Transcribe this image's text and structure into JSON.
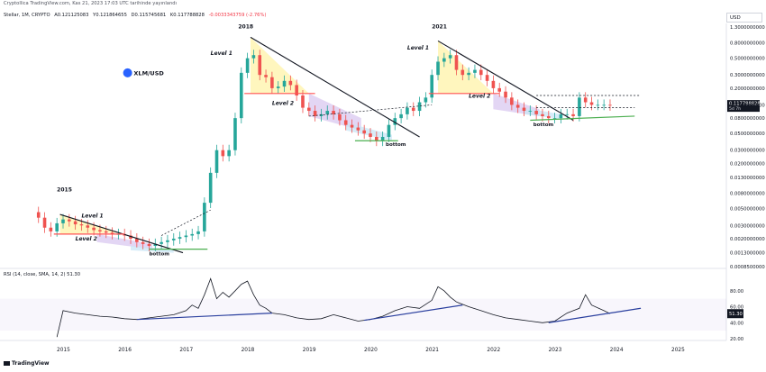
{
  "header": {
    "caption": "Cryptollica TradingView.com, Kas 21, 2023 17:03 UTC tarihinde yayınlandı",
    "symbol": "Stellar, 1M, CRYPTO",
    "open": "A0.121125083",
    "high": "Y0.121864655",
    "low": "D0.115745681",
    "close": "K0.117788828",
    "change": "-0.0033343759 (-2.76%)"
  },
  "currency_badge": "USD",
  "brand": "TradingView",
  "pair_label": "XLM/USD",
  "colors": {
    "up": "#26a69a",
    "down": "#ef5350",
    "rsi": "#131722",
    "trendline": "#2a3f9e",
    "red_level": "#ff5252",
    "green_level": "#4caf50",
    "level1_fill": "#fff3a8",
    "level2_fill": "#d9c8f0",
    "bottom_fill": "#c9e6f5",
    "price_badge": "#131722"
  },
  "annotations": {
    "y2015": "2015",
    "y2018": "2018",
    "y2021": "2021",
    "level1": "Level 1",
    "level2": "Level 2",
    "bottom": "bottom"
  },
  "price_badge": {
    "price": "0.117788828",
    "countdown": "5d 7h"
  },
  "chart_data": [
    {
      "type": "candlestick",
      "title": "Stellar, 1M, CRYPTO",
      "scale": "log",
      "ylim": [
        0.00085,
        1.3
      ],
      "y_ticks": [
        "1.3000000000",
        "0.8000000000",
        "0.5000000000",
        "0.3000000000",
        "0.2000000000",
        "0.1200000000",
        "0.0800000000",
        "0.0500000000",
        "0.0300000000",
        "0.0200000000",
        "0.0130000000",
        "0.0080000000",
        "0.0050000000",
        "0.0030000000",
        "0.0020000000",
        "0.0013000000",
        "0.0008500000"
      ],
      "y_tick_values": [
        1.3,
        0.8,
        0.5,
        0.3,
        0.2,
        0.12,
        0.08,
        0.05,
        0.03,
        0.02,
        0.013,
        0.008,
        0.005,
        0.003,
        0.002,
        0.0013,
        0.00085
      ],
      "x_ticks": [
        "2015",
        "2016",
        "2017",
        "2018",
        "2019",
        "2020",
        "2021",
        "2022",
        "2023",
        "2024",
        "2025"
      ],
      "x_tick_values": [
        2015,
        2016,
        2017,
        2018,
        2019,
        2020,
        2021,
        2022,
        2023,
        2024,
        2025
      ],
      "series": [
        {
          "x": [
            2014.6,
            2014.7,
            2014.8,
            2014.9,
            2015.0,
            2015.1,
            2015.2,
            2015.3,
            2015.4,
            2015.5,
            2015.6,
            2015.7,
            2015.8,
            2015.9,
            2016.0,
            2016.1,
            2016.2,
            2016.3,
            2016.4,
            2016.5,
            2016.6,
            2016.7,
            2016.8,
            2016.9,
            2017.0,
            2017.1,
            2017.2,
            2017.3,
            2017.4,
            2017.5,
            2017.6,
            2017.7,
            2017.8,
            2017.9,
            2018.0,
            2018.1,
            2018.2,
            2018.3,
            2018.4,
            2018.5,
            2018.6,
            2018.7,
            2018.8,
            2018.9,
            2019.0,
            2019.1,
            2019.2,
            2019.3,
            2019.4,
            2019.5,
            2019.6,
            2019.7,
            2019.8,
            2019.9,
            2020.0,
            2020.1,
            2020.2,
            2020.3,
            2020.4,
            2020.5,
            2020.6,
            2020.7,
            2020.8,
            2020.9,
            2021.0,
            2021.1,
            2021.2,
            2021.3,
            2021.4,
            2021.5,
            2021.6,
            2021.7,
            2021.8,
            2021.9,
            2022.0,
            2022.1,
            2022.2,
            2022.3,
            2022.4,
            2022.5,
            2022.6,
            2022.7,
            2022.8,
            2022.9,
            2023.0,
            2023.1,
            2023.2,
            2023.3,
            2023.4,
            2023.5,
            2023.6,
            2023.7,
            2023.8,
            2023.9
          ],
          "open": [
            0.0045,
            0.0038,
            0.0028,
            0.0025,
            0.0032,
            0.0036,
            0.0034,
            0.0031,
            0.003,
            0.0028,
            0.0026,
            0.0025,
            0.0024,
            0.0023,
            0.0023,
            0.0022,
            0.002,
            0.0018,
            0.0017,
            0.0016,
            0.0017,
            0.0018,
            0.0019,
            0.002,
            0.0021,
            0.0022,
            0.0023,
            0.0025,
            0.006,
            0.015,
            0.03,
            0.025,
            0.03,
            0.08,
            0.32,
            0.5,
            0.55,
            0.3,
            0.28,
            0.2,
            0.21,
            0.25,
            0.22,
            0.16,
            0.11,
            0.1,
            0.085,
            0.09,
            0.1,
            0.09,
            0.075,
            0.065,
            0.06,
            0.055,
            0.05,
            0.045,
            0.04,
            0.045,
            0.065,
            0.08,
            0.09,
            0.11,
            0.1,
            0.13,
            0.15,
            0.3,
            0.45,
            0.5,
            0.55,
            0.35,
            0.3,
            0.32,
            0.35,
            0.3,
            0.25,
            0.2,
            0.18,
            0.15,
            0.12,
            0.11,
            0.1,
            0.1,
            0.09,
            0.085,
            0.08,
            0.08,
            0.09,
            0.09,
            0.085,
            0.15,
            0.13,
            0.12,
            0.12,
            0.12
          ],
          "close": [
            0.0038,
            0.0028,
            0.0025,
            0.0032,
            0.0036,
            0.0034,
            0.0031,
            0.003,
            0.0028,
            0.0026,
            0.0025,
            0.0024,
            0.0023,
            0.0023,
            0.0022,
            0.002,
            0.0018,
            0.0017,
            0.0016,
            0.0017,
            0.0018,
            0.0019,
            0.002,
            0.0021,
            0.0022,
            0.0023,
            0.0025,
            0.006,
            0.015,
            0.03,
            0.025,
            0.03,
            0.08,
            0.32,
            0.5,
            0.55,
            0.3,
            0.28,
            0.2,
            0.21,
            0.25,
            0.22,
            0.16,
            0.11,
            0.1,
            0.085,
            0.09,
            0.1,
            0.09,
            0.075,
            0.065,
            0.06,
            0.055,
            0.05,
            0.045,
            0.04,
            0.045,
            0.065,
            0.08,
            0.09,
            0.11,
            0.1,
            0.13,
            0.15,
            0.3,
            0.45,
            0.5,
            0.55,
            0.35,
            0.3,
            0.32,
            0.35,
            0.3,
            0.25,
            0.2,
            0.18,
            0.15,
            0.12,
            0.11,
            0.1,
            0.1,
            0.09,
            0.085,
            0.08,
            0.08,
            0.09,
            0.09,
            0.085,
            0.15,
            0.13,
            0.12,
            0.12,
            0.12,
            0.1178
          ]
        }
      ]
    },
    {
      "type": "line",
      "title": "RSI (14, close, SMA, 14, 2) 51.30",
      "ylim": [
        20,
        100
      ],
      "y_ticks": [
        "80.00",
        "60.00",
        "51.30",
        "40.00",
        "20.00"
      ],
      "series": [
        {
          "name": "RSI (14, close, SMA, 14, 2)",
          "x": [
            2014.9,
            2015.0,
            2015.2,
            2015.4,
            2015.6,
            2015.8,
            2016.0,
            2016.2,
            2016.4,
            2016.6,
            2016.8,
            2017.0,
            2017.1,
            2017.2,
            2017.3,
            2017.4,
            2017.5,
            2017.6,
            2017.7,
            2017.8,
            2017.9,
            2018.0,
            2018.1,
            2018.2,
            2018.3,
            2018.4,
            2018.6,
            2018.8,
            2019.0,
            2019.2,
            2019.4,
            2019.6,
            2019.8,
            2020.0,
            2020.2,
            2020.4,
            2020.6,
            2020.8,
            2021.0,
            2021.1,
            2021.2,
            2021.3,
            2021.4,
            2021.6,
            2021.8,
            2022.0,
            2022.2,
            2022.4,
            2022.6,
            2022.8,
            2023.0,
            2023.2,
            2023.4,
            2023.5,
            2023.6,
            2023.8,
            2023.9
          ],
          "values": [
            22,
            55,
            52,
            50,
            48,
            47,
            45,
            44,
            46,
            48,
            50,
            55,
            62,
            58,
            75,
            95,
            70,
            78,
            72,
            80,
            88,
            92,
            75,
            62,
            58,
            52,
            50,
            46,
            44,
            45,
            50,
            46,
            42,
            44,
            48,
            55,
            60,
            58,
            68,
            85,
            80,
            72,
            66,
            60,
            55,
            50,
            46,
            44,
            42,
            40,
            42,
            52,
            58,
            75,
            62,
            55,
            51.3
          ]
        }
      ]
    }
  ]
}
